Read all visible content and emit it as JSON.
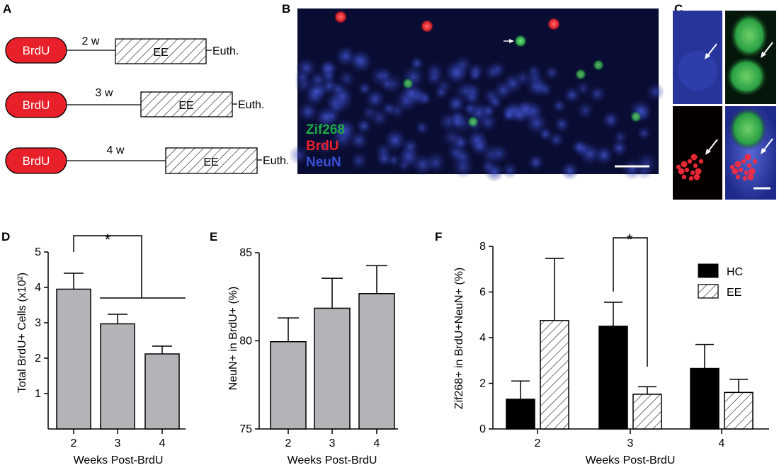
{
  "panels": {
    "A": {
      "label": "A",
      "rows": [
        {
          "label": "BrdU",
          "interval": "2 w",
          "box": "EE",
          "end": "Euth."
        },
        {
          "label": "BrdU",
          "interval": "3 w",
          "box": "EE",
          "end": "Euth."
        },
        {
          "label": "BrdU",
          "interval": "4 w",
          "box": "EE",
          "end": "Euth."
        }
      ],
      "colors": {
        "pill": "#e8202a"
      }
    },
    "B": {
      "label": "B",
      "legend": [
        {
          "text": "Zif268",
          "color": "#1fa84a"
        },
        {
          "text": "BrdU",
          "color": "#e8202a"
        },
        {
          "text": "NeuN",
          "color": "#3b4fd6"
        }
      ]
    },
    "C": {
      "label": "C"
    }
  },
  "chart_data": [
    {
      "panel": "D",
      "type": "bar",
      "categories": [
        "2",
        "3",
        "4"
      ],
      "values": [
        3.95,
        2.97,
        2.12
      ],
      "errors": [
        0.45,
        0.27,
        0.22
      ],
      "xlabel": "Weeks Post-BrdU",
      "ylabel": "Total BrdU+ Cells (x10²)",
      "ylim": [
        0,
        5
      ],
      "yticks": [
        "1",
        "2",
        "3",
        "4",
        "5"
      ],
      "significance": "*",
      "bar_color": "#b4b4b8"
    },
    {
      "panel": "E",
      "type": "bar",
      "categories": [
        "2",
        "3",
        "4"
      ],
      "values": [
        79.95,
        81.85,
        82.68
      ],
      "errors": [
        1.35,
        1.7,
        1.58
      ],
      "xlabel": "Weeks Post-BrdU",
      "ylabel": "NeuN+ in BrdU+ (%)",
      "ylim": [
        75,
        85
      ],
      "yticks": [
        "75",
        "80",
        "85"
      ],
      "bar_color": "#b4b4b8"
    },
    {
      "panel": "F",
      "type": "bar",
      "categories": [
        "2",
        "3",
        "4"
      ],
      "series": [
        {
          "name": "HC",
          "values": [
            1.3,
            4.5,
            2.65
          ],
          "errors": [
            0.8,
            1.05,
            1.05
          ],
          "color": "#000000"
        },
        {
          "name": "EE",
          "values": [
            4.75,
            1.52,
            1.6
          ],
          "errors": [
            2.72,
            0.33,
            0.57
          ],
          "pattern": "hatched"
        }
      ],
      "xlabel": "Weeks Post-BrdU",
      "ylabel": "Zif268+ in BrdU+NeuN+ (%)",
      "ylim": [
        0,
        8
      ],
      "yticks": [
        "0",
        "2",
        "4",
        "6",
        "8"
      ],
      "significance": "*",
      "legend_position": "top-right"
    }
  ]
}
